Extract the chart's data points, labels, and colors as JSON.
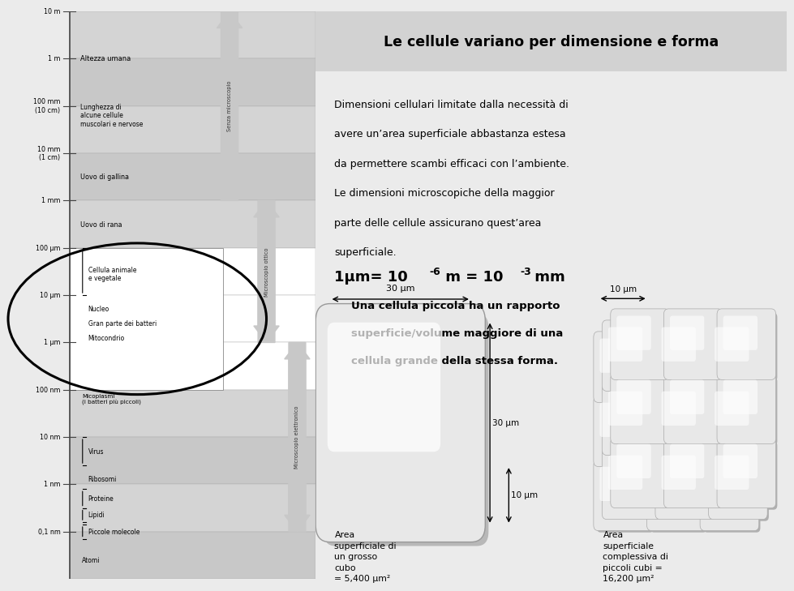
{
  "title": "Le cellule variano per dimensione e forma",
  "scale_labels": [
    "10 m",
    "1 m",
    "100 mm\n(10 cm)",
    "10 mm\n(1 cm)",
    "1 mm",
    "100 μm",
    "10 μm",
    "1 μm",
    "100 nm",
    "10 nm",
    "1 nm",
    "0,1 nm"
  ],
  "row_colors": [
    "#d4d4d4",
    "#c8c8c8",
    "#d4d4d4",
    "#c8c8c8",
    "#d4d4d4",
    "#ffffff",
    "#ffffff",
    "#ffffff",
    "#d4d4d4",
    "#c8c8c8",
    "#d4d4d4",
    "#c8c8c8"
  ],
  "text_body_lines": [
    "Dimensioni cellulari limitate dalla necessità di",
    "avere un’area superficiale abbastanza estesa",
    "da permettere scambi efficaci con l’ambiente.",
    "Le dimensioni microscopiche della maggior",
    "parte delle cellule assicurano quest’area",
    "superficiale."
  ],
  "formula": "1μm= 10",
  "formula_sup1": "-6",
  "formula_mid": " m = 10",
  "formula_sup2": "-3",
  "formula_end": " mm",
  "sub_text_lines": [
    "Una cellula piccola ha un rapporto",
    "superficie/volume maggiore di una",
    "cellula grande della stessa forma."
  ],
  "big_cube_dim": "30 μm",
  "small_cube_dim": "10 μm",
  "dim_label": "30 μm 10 μm",
  "caption_big": "Area\nsuperficiale di\nun grosso\ncubo\n= 5,400 μm²",
  "caption_small": "Area\nsuperficiale\ncomplessiva di\npiccoli cubi =\n16,200 μm²",
  "left_bg": "#c8c8c8",
  "right_bg": "#ebebeb",
  "title_bar_color": "#d2d2d2",
  "micro_labels": [
    "Senza microscopio",
    "Microscopio ottico",
    "Microscopio elettronico"
  ],
  "micro_colors": [
    "#c0c0c0",
    "#b8b8b8",
    "#b0b0b0"
  ],
  "scale_items": [
    {
      "label": "Altezza umana",
      "row": 1,
      "indent": 0.0,
      "brace": false
    },
    {
      "label": "Lunghezza di\nalcune cellule\nmuscolari e nervose",
      "row": 2,
      "indent": 0.0,
      "brace": false
    },
    {
      "label": "Uovo di gallina",
      "row": 3,
      "indent": 0.0,
      "brace": false
    },
    {
      "label": "Uovo di rana",
      "row": 4,
      "indent": 0.0,
      "brace": false
    },
    {
      "label": "Cellula animale\ne vegetale",
      "row": 5,
      "indent": 0.0,
      "brace": true
    },
    {
      "label": "Nucleo",
      "row": 6,
      "indent": 0.0,
      "brace": false
    },
    {
      "label": "Gran parte dei batteri",
      "row": 6,
      "indent": 0.0,
      "brace": false
    },
    {
      "label": "Mitocondrio",
      "row": 7,
      "indent": 0.0,
      "brace": false
    },
    {
      "label": "Micoplasmi\n(i batteri più piccoli)",
      "row": 8,
      "indent": 0.0,
      "brace": false
    },
    {
      "label": "Virus",
      "row": 8,
      "indent": 0.0,
      "brace": true
    },
    {
      "label": "Ribosomi",
      "row": 9,
      "indent": 0.0,
      "brace": false
    },
    {
      "label": "Proteine",
      "row": 10,
      "indent": 0.0,
      "brace": true
    },
    {
      "label": "Lipidi",
      "row": 10,
      "indent": 0.0,
      "brace": true
    },
    {
      "label": "Piccole molecole",
      "row": 11,
      "indent": 0.0,
      "brace": true
    },
    {
      "label": "Atomi",
      "row": 11,
      "indent": 0.0,
      "brace": false
    }
  ]
}
